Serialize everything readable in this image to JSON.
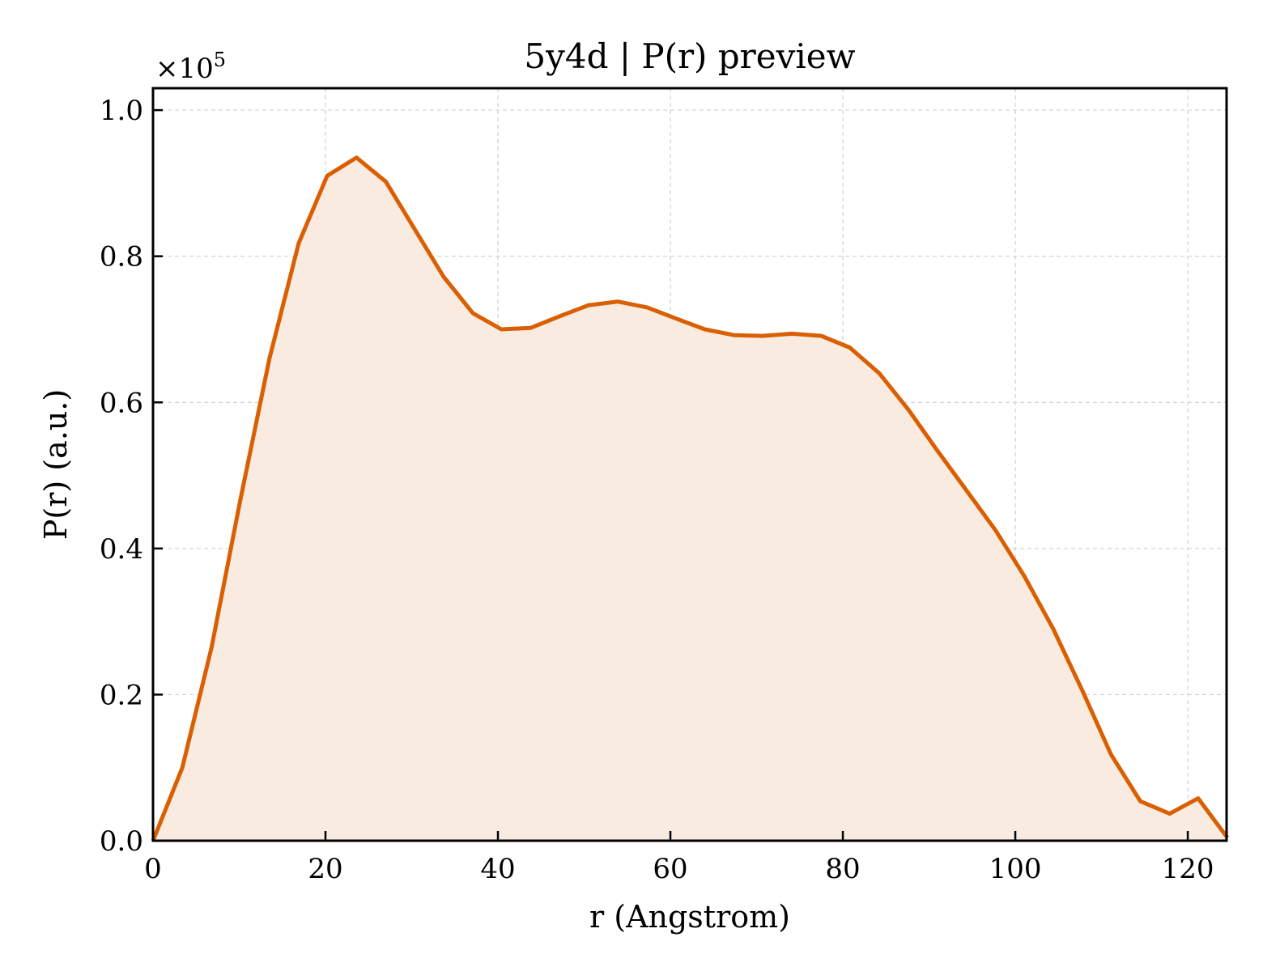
{
  "chart_data": {
    "type": "area",
    "title": "5y4d | P(r) preview",
    "xlabel": "r (Angstrom)",
    "ylabel": "P(r) (a.u.)",
    "offset_label": {
      "base": "×10",
      "exponent": "5"
    },
    "xlim": [
      0,
      124.5
    ],
    "ylim": [
      0,
      1.03
    ],
    "y_scale_factor": 100000,
    "x_ticks": [
      0,
      20,
      40,
      60,
      80,
      100,
      120
    ],
    "x_tick_labels": [
      "0",
      "20",
      "40",
      "60",
      "80",
      "100",
      "120"
    ],
    "y_ticks": [
      0.0,
      0.2,
      0.4,
      0.6,
      0.8,
      1.0
    ],
    "y_tick_labels": [
      "0.0",
      "0.2",
      "0.4",
      "0.6",
      "0.8",
      "1.0"
    ],
    "grid": true,
    "line_color": "#d95f02",
    "fill_color": "#f9ebe0",
    "series": [
      {
        "x": [
          0,
          3.4,
          6.8,
          10.1,
          13.5,
          16.9,
          20.2,
          23.6,
          27.0,
          30.3,
          33.7,
          37.1,
          40.4,
          43.8,
          47.2,
          50.5,
          53.9,
          57.3,
          60.6,
          64.0,
          67.4,
          70.7,
          74.1,
          77.5,
          80.8,
          84.2,
          87.6,
          90.9,
          94.3,
          97.7,
          101.0,
          104.4,
          107.8,
          111.1,
          114.5,
          117.9,
          121.2,
          124.6
        ],
        "y": [
          0.0,
          0.1,
          0.265,
          0.465,
          0.66,
          0.818,
          0.91,
          0.935,
          0.902,
          0.838,
          0.772,
          0.722,
          0.7,
          0.702,
          0.718,
          0.733,
          0.738,
          0.73,
          0.715,
          0.7,
          0.692,
          0.691,
          0.694,
          0.691,
          0.675,
          0.64,
          0.59,
          0.535,
          0.48,
          0.425,
          0.363,
          0.29,
          0.205,
          0.118,
          0.054,
          0.037,
          0.058,
          0.004
        ]
      }
    ]
  }
}
